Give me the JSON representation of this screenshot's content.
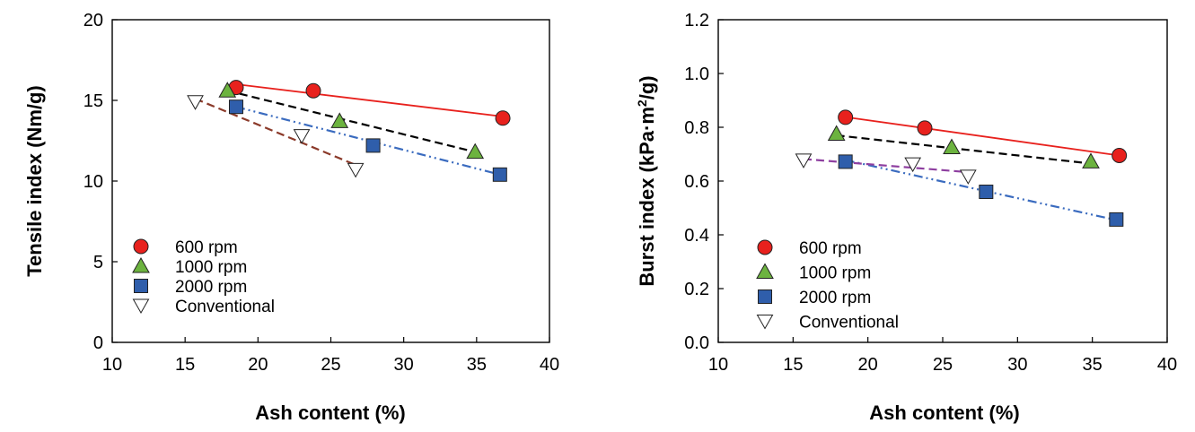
{
  "chart_data": [
    {
      "type": "scatter",
      "title": "",
      "xlabel": "Ash content (%)",
      "ylabel": "Tensile index (Nm/g)",
      "xlim": [
        10,
        40
      ],
      "ylim": [
        0,
        20
      ],
      "xticks": [
        10,
        15,
        20,
        25,
        30,
        35,
        40
      ],
      "yticks": [
        0,
        5,
        10,
        15,
        20
      ],
      "ytick_labels": [
        "0",
        "5",
        "10",
        "15",
        "20"
      ],
      "legend_position": "lower-left",
      "series": [
        {
          "name": "600 rpm",
          "marker": "circle",
          "color": "#e8211d",
          "line_color": "#e8211d",
          "line_style": "solid",
          "x": [
            18.5,
            23.8,
            36.8
          ],
          "y": [
            15.8,
            15.6,
            13.9
          ],
          "fit": [
            [
              18.5,
              16.0
            ],
            [
              36.8,
              14.0
            ]
          ]
        },
        {
          "name": "1000 rpm",
          "marker": "triangle",
          "color": "#6cb33f",
          "line_color": "#000000",
          "line_style": "dash",
          "x": [
            17.9,
            25.6,
            34.9
          ],
          "y": [
            15.6,
            13.7,
            11.8
          ],
          "fit": [
            [
              17.9,
              15.6
            ],
            [
              34.9,
              11.8
            ]
          ]
        },
        {
          "name": "2000 rpm",
          "marker": "square",
          "color": "#2f5eab",
          "line_color": "#3a6bbf",
          "line_style": "dashdotdot",
          "x": [
            18.5,
            27.9,
            36.6
          ],
          "y": [
            14.6,
            12.2,
            10.4
          ],
          "fit": [
            [
              18.5,
              14.6
            ],
            [
              36.6,
              10.4
            ]
          ]
        },
        {
          "name": "Conventional",
          "marker": "triangle-down",
          "color": "#ffffff",
          "line_color": "#8b3a2a",
          "line_style": "dash",
          "x": [
            15.7,
            23.0,
            26.7
          ],
          "y": [
            14.9,
            12.8,
            10.7
          ],
          "fit": [
            [
              15.7,
              15.1
            ],
            [
              26.7,
              11.0
            ]
          ]
        }
      ]
    },
    {
      "type": "scatter",
      "title": "",
      "xlabel": "Ash content (%)",
      "ylabel_main": "Burst index (kPa·m",
      "ylabel_sup": "2",
      "ylabel_end": "/g)",
      "xlim": [
        10,
        40
      ],
      "ylim": [
        0,
        1.2
      ],
      "xticks": [
        10,
        15,
        20,
        25,
        30,
        35,
        40
      ],
      "yticks": [
        0,
        0.2,
        0.4,
        0.6,
        0.8,
        1.0,
        1.2
      ],
      "ytick_labels": [
        "0.0",
        "0.2",
        "0.4",
        "0.6",
        "0.8",
        "1.0",
        "1.2"
      ],
      "legend_position": "lower-left",
      "series": [
        {
          "name": "600 rpm",
          "marker": "circle",
          "color": "#e8211d",
          "line_color": "#e8211d",
          "line_style": "solid",
          "x": [
            18.5,
            23.8,
            36.8
          ],
          "y": [
            0.837,
            0.797,
            0.695
          ],
          "fit": [
            [
              18.5,
              0.838
            ],
            [
              36.8,
              0.695
            ]
          ]
        },
        {
          "name": "1000 rpm",
          "marker": "triangle",
          "color": "#6cb33f",
          "line_color": "#000000",
          "line_style": "dash",
          "x": [
            17.9,
            25.6,
            34.9
          ],
          "y": [
            0.775,
            0.725,
            0.672
          ],
          "fit": [
            [
              17.9,
              0.77
            ],
            [
              34.9,
              0.665
            ]
          ]
        },
        {
          "name": "2000 rpm",
          "marker": "square",
          "color": "#2f5eab",
          "line_color": "#3a6bbf",
          "line_style": "dashdotdot",
          "x": [
            18.5,
            27.9,
            36.6
          ],
          "y": [
            0.672,
            0.56,
            0.457
          ],
          "fit": [
            [
              18.5,
              0.678
            ],
            [
              36.6,
              0.455
            ]
          ]
        },
        {
          "name": "Conventional",
          "marker": "triangle-down",
          "color": "#ffffff",
          "line_color": "#8e3fa0",
          "line_style": "dash",
          "x": [
            15.7,
            23.0,
            26.7
          ],
          "y": [
            0.677,
            0.663,
            0.617
          ],
          "fit": [
            [
              15.7,
              0.682
            ],
            [
              26.7,
              0.633
            ]
          ]
        }
      ]
    }
  ]
}
